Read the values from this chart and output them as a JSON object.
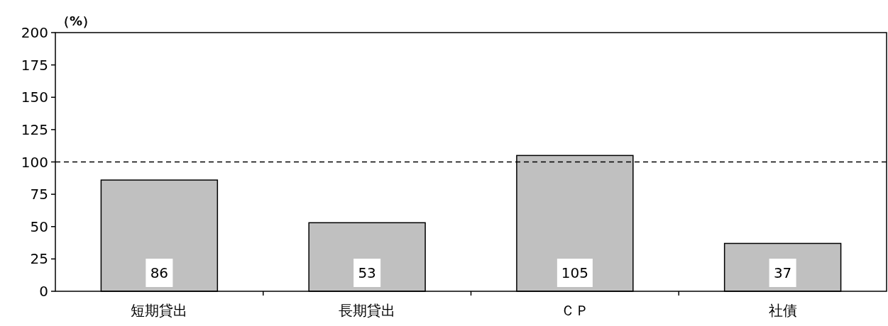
{
  "chart_data": {
    "type": "bar",
    "ylabel": "（%）",
    "categories": [
      "短期貸出",
      "長期貸出",
      "ＣＰ",
      "社債"
    ],
    "values": [
      86,
      53,
      105,
      37
    ],
    "color": "#c0c0c0",
    "ylim": [
      0,
      200
    ],
    "yticks": [
      0,
      25,
      50,
      75,
      100,
      125,
      150,
      175,
      200
    ],
    "grid": false,
    "data_labels": true,
    "ref_lines": [
      {
        "axis": "y",
        "value": 100,
        "line_style": "dashed",
        "color": "#000000"
      }
    ]
  }
}
